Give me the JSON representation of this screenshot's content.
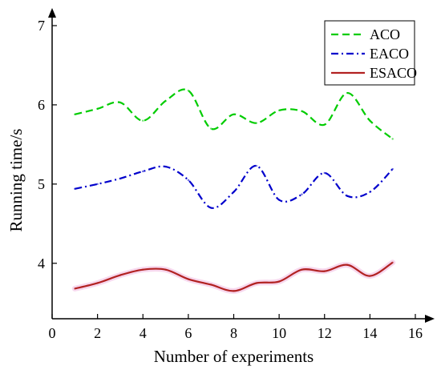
{
  "chart_data": {
    "type": "line",
    "title": "",
    "xlabel": "Number of experiments",
    "ylabel": "Running time/s",
    "xlim": [
      0,
      16
    ],
    "ylim": [
      3.3,
      7
    ],
    "xticks": [
      0,
      2,
      4,
      6,
      8,
      10,
      12,
      14,
      16
    ],
    "yticks": [
      4,
      5,
      6,
      7
    ],
    "grid": false,
    "legend_position": "top-right",
    "series": [
      {
        "name": "ACO",
        "color": "#00cc00",
        "style": "dashed",
        "x": [
          1,
          2,
          3,
          4,
          5,
          6,
          7,
          8,
          9,
          10,
          11,
          12,
          13,
          14,
          15
        ],
        "y": [
          5.88,
          5.95,
          6.03,
          5.8,
          6.05,
          6.18,
          5.7,
          5.88,
          5.77,
          5.93,
          5.92,
          5.75,
          6.15,
          5.8,
          5.57
        ]
      },
      {
        "name": "EACO",
        "color": "#0000cc",
        "style": "dashdot",
        "x": [
          1,
          2,
          3,
          4,
          5,
          6,
          7,
          8,
          9,
          10,
          11,
          12,
          13,
          14,
          15
        ],
        "y": [
          4.94,
          5.0,
          5.07,
          5.16,
          5.22,
          5.05,
          4.7,
          4.9,
          5.23,
          4.8,
          4.87,
          5.14,
          4.85,
          4.9,
          5.19
        ]
      },
      {
        "name": "ESACO",
        "color": "#b22222",
        "style": "solid",
        "x": [
          1,
          2,
          3,
          4,
          5,
          6,
          7,
          8,
          9,
          10,
          11,
          12,
          13,
          14,
          15
        ],
        "y": [
          3.68,
          3.75,
          3.85,
          3.92,
          3.92,
          3.8,
          3.73,
          3.65,
          3.75,
          3.77,
          3.92,
          3.9,
          3.98,
          3.84,
          4.01
        ]
      }
    ]
  }
}
